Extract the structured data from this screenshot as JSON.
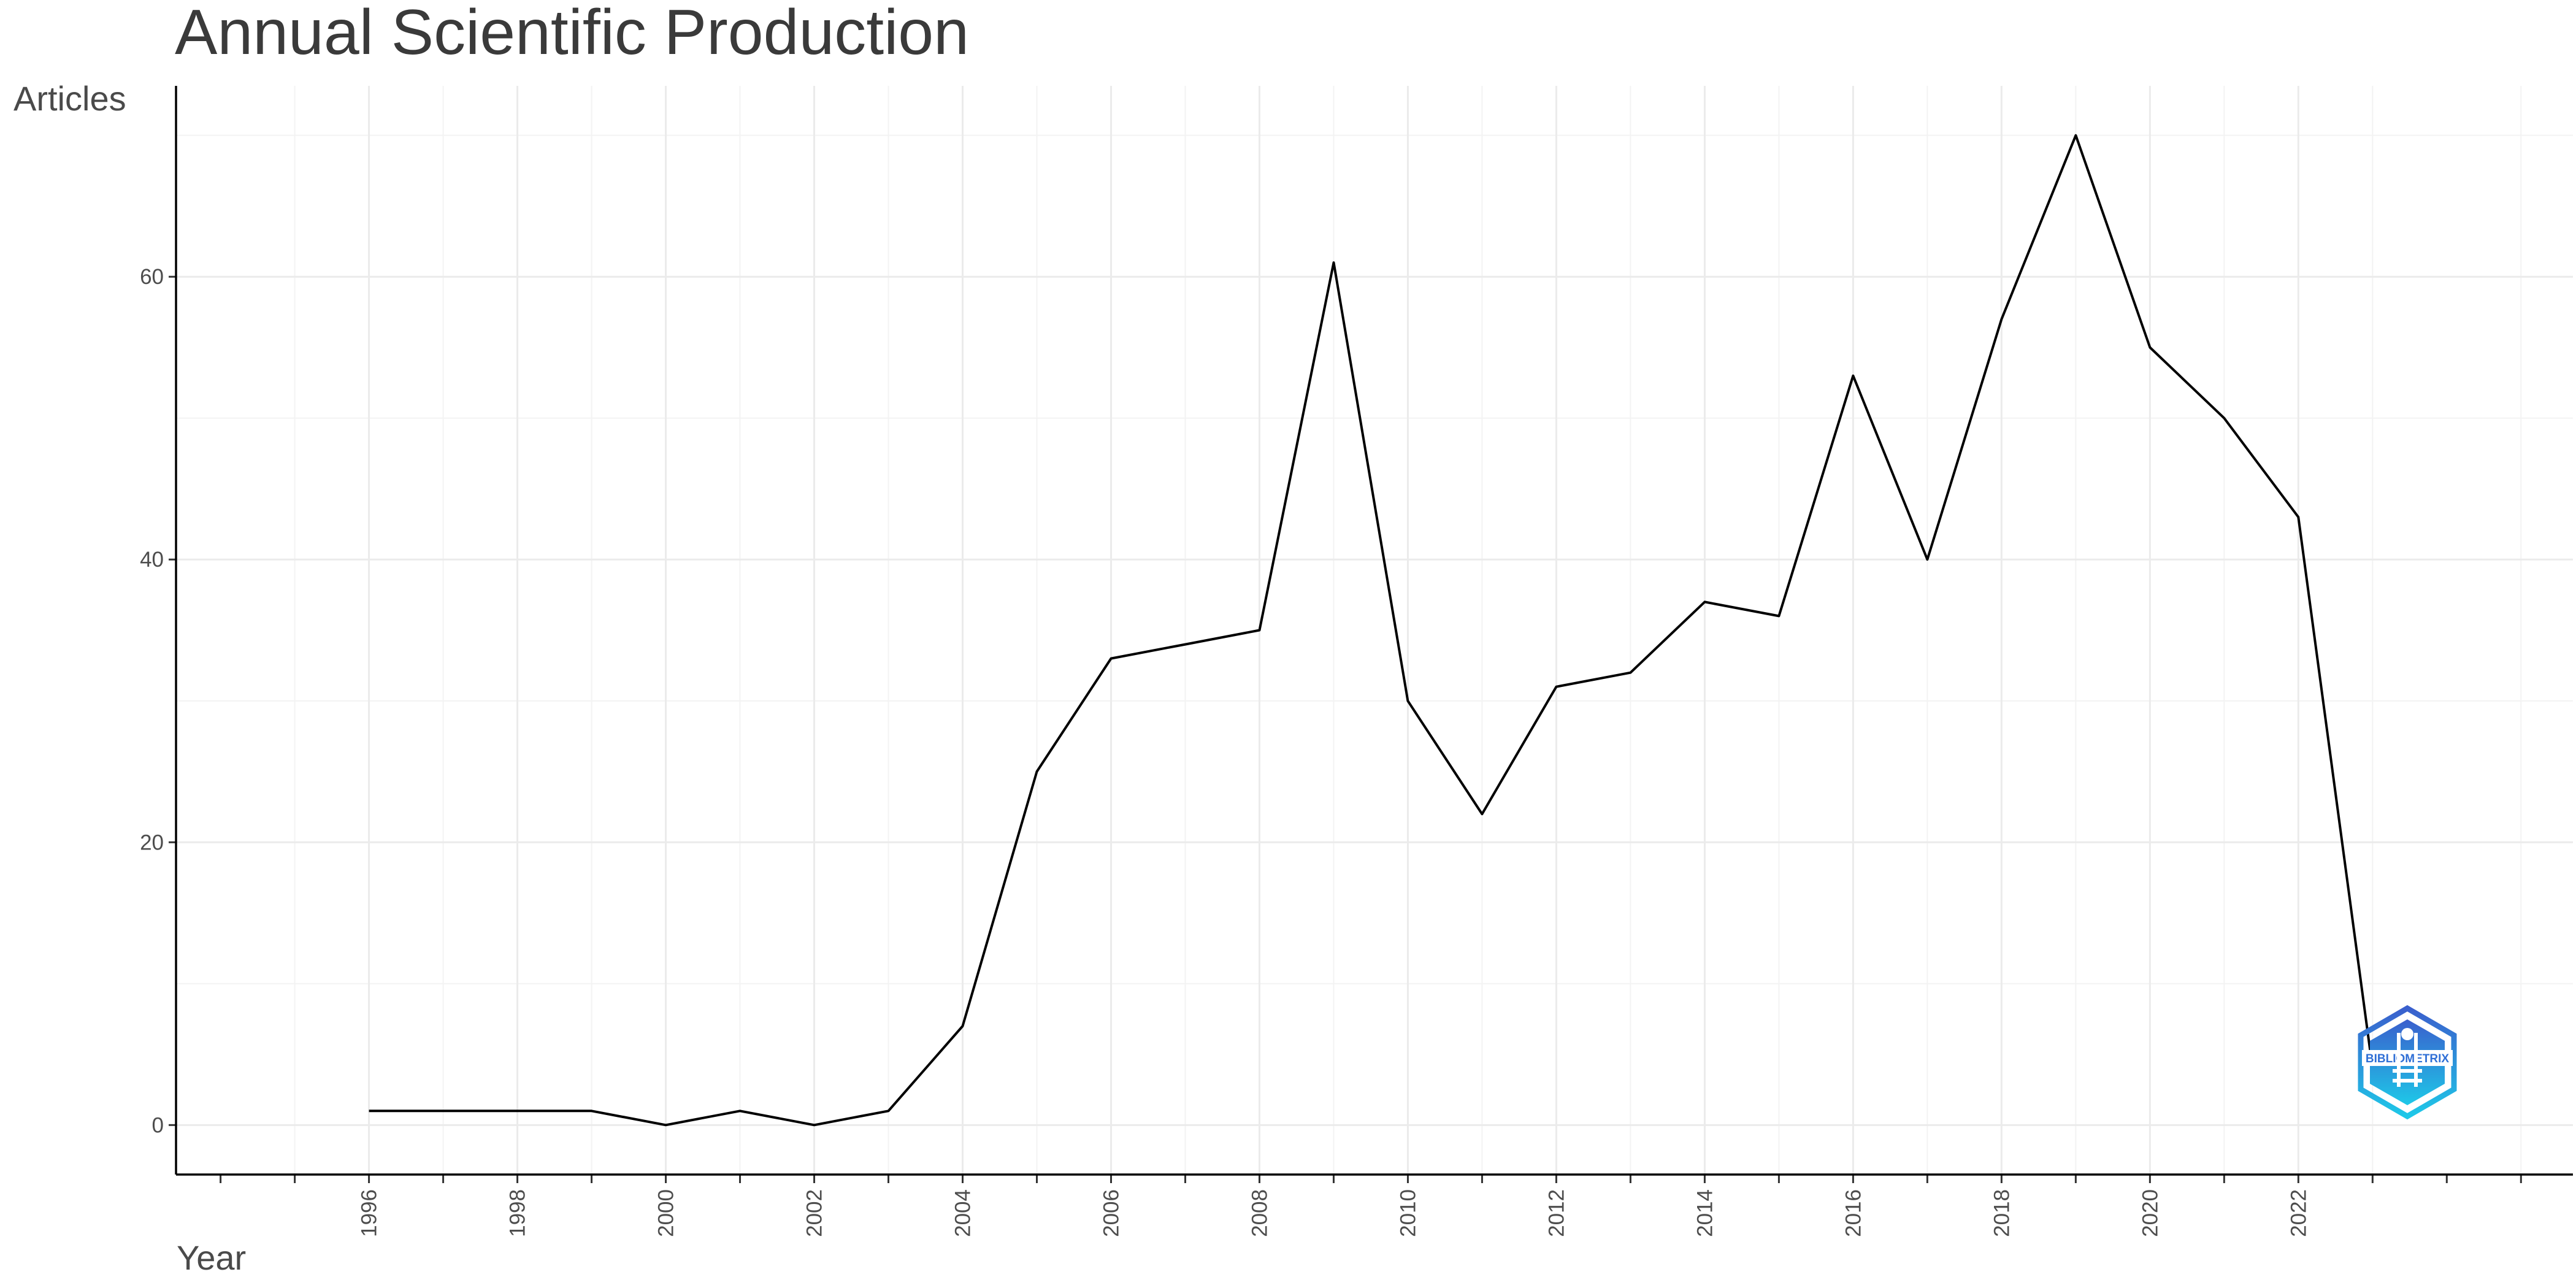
{
  "chart_data": {
    "type": "line",
    "title": "Annual Scientific Production",
    "xlabel": "Year",
    "ylabel": "Articles",
    "x": [
      1996,
      1997,
      1998,
      1999,
      2000,
      2001,
      2002,
      2003,
      2004,
      2005,
      2006,
      2007,
      2008,
      2009,
      2010,
      2011,
      2012,
      2013,
      2014,
      2015,
      2016,
      2017,
      2018,
      2019,
      2020,
      2021,
      2022,
      2023
    ],
    "series": [
      {
        "values": [
          1,
          1,
          1,
          1,
          0,
          1,
          0,
          1,
          7,
          25,
          33,
          34,
          35,
          61,
          30,
          22,
          31,
          32,
          37,
          36,
          53,
          40,
          57,
          70,
          55,
          50,
          43,
          4
        ]
      }
    ],
    "x_ticks": [
      "1996",
      "1998",
      "2000",
      "2002",
      "2004",
      "2006",
      "2008",
      "2010",
      "2012",
      "2014",
      "2016",
      "2018",
      "2020",
      "2022"
    ],
    "y_ticks": [
      "0",
      "20",
      "40",
      "60"
    ],
    "xlim": [
      1993.4,
      2025.7
    ],
    "ylim": [
      -3.5,
      73.5
    ],
    "grid": true,
    "line_color": "#000000"
  },
  "watermark": {
    "text": "BIBLIOMETRIX",
    "icon": "bibliometrix-logo",
    "color_top": "#3a5fcd",
    "color_bottom": "#1ec8e8"
  }
}
